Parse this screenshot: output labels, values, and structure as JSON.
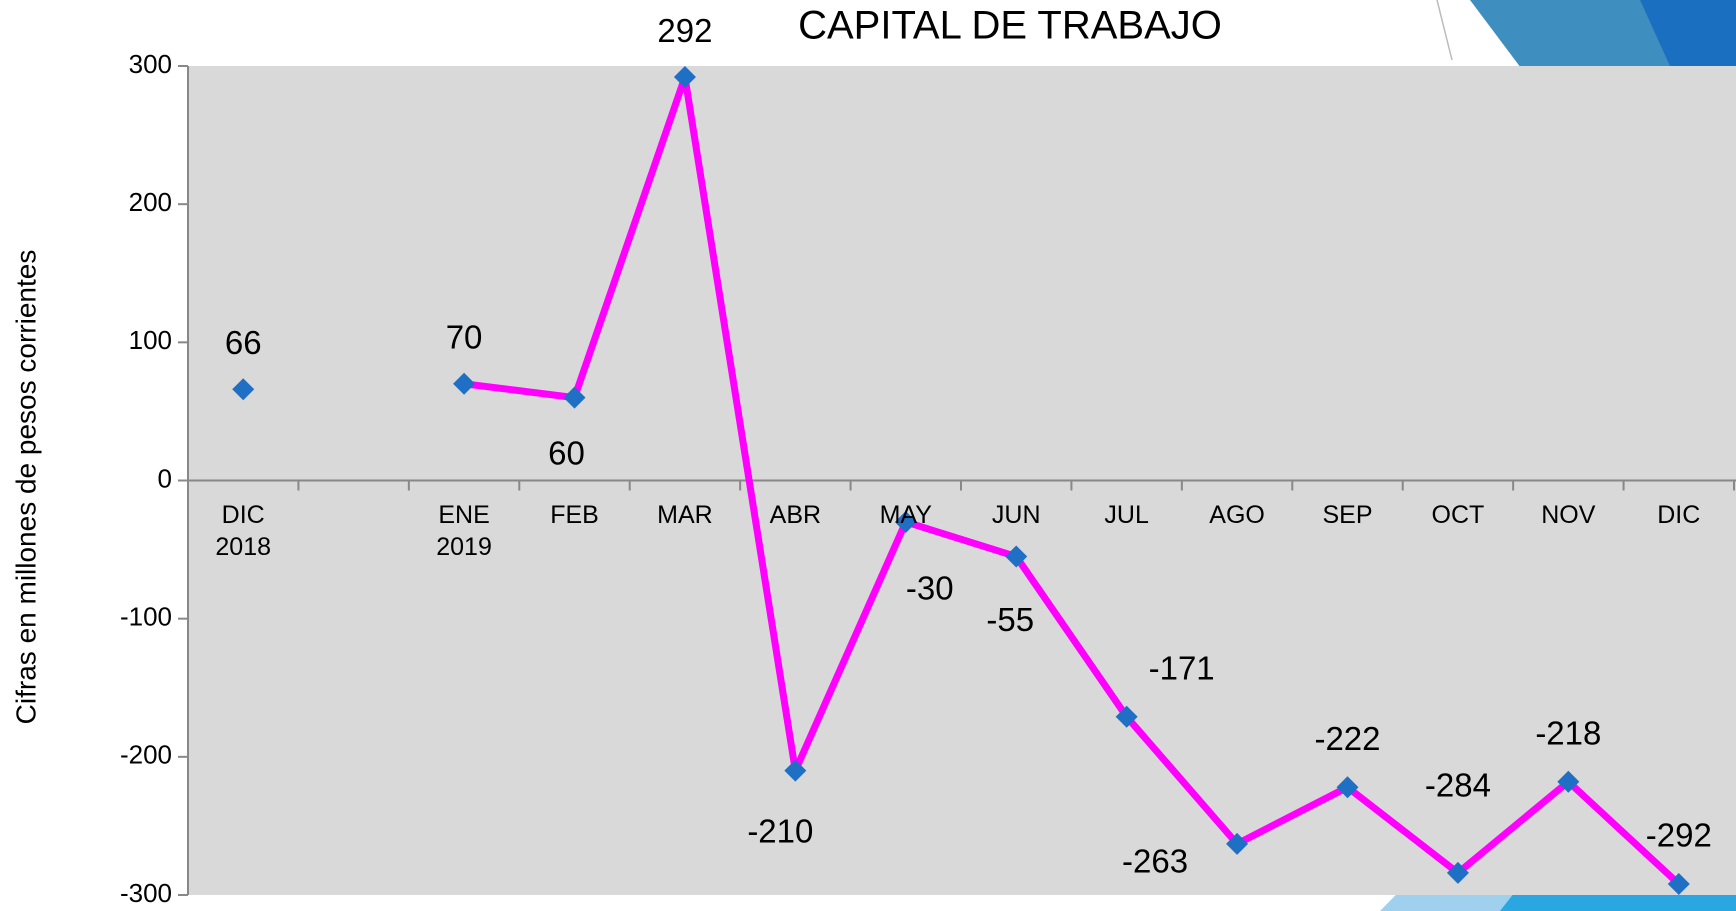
{
  "chart_data": {
    "type": "line",
    "title": "CAPITAL DE TRABAJO",
    "y_label": "Cifras en millones de pesos corrientes",
    "categories": [
      "DIC\n2018",
      null,
      "ENE\n2019",
      "FEB",
      "MAR",
      "ABR",
      "MAY",
      "JUN",
      "JUL",
      "AGO",
      "SEP",
      "OCT",
      "NOV",
      "DIC"
    ],
    "series": [
      {
        "name": "Capital de trabajo",
        "color": "#ff00ff",
        "marker_color": "#1f6fc4",
        "values": [
          66,
          null,
          70,
          60,
          292,
          -210,
          -30,
          -55,
          -171,
          -263,
          -222,
          -284,
          -218,
          -292
        ]
      }
    ],
    "ylim": [
      -300,
      300
    ],
    "yticks": [
      -300,
      -200,
      -100,
      0,
      100,
      200,
      300
    ],
    "grid": false
  }
}
